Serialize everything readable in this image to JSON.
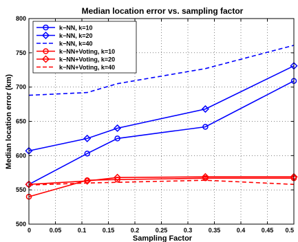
{
  "chart_data": {
    "type": "line",
    "title": "Median location error vs. sampling factor",
    "xlabel": "Sampling Factor",
    "ylabel": "Median location error (km)",
    "xlim": [
      0,
      0.5
    ],
    "ylim": [
      500,
      800
    ],
    "xticks": [
      "0",
      "0.05",
      "0.1",
      "0.15",
      "0.2",
      "0.25",
      "0.3",
      "0.35",
      "0.4",
      "0.45",
      "0.5"
    ],
    "yticks": [
      "500",
      "550",
      "600",
      "650",
      "700",
      "750",
      "800"
    ],
    "grid": "dotted",
    "legend_position": "top-left",
    "series": [
      {
        "name": "k−NN, k=10",
        "color": "#0000ff",
        "style": "solid",
        "marker": "circle",
        "x": [
          0,
          0.11,
          0.167,
          0.333,
          0.5
        ],
        "y": [
          558,
          603,
          625,
          642,
          709
        ]
      },
      {
        "name": "k−NN, k=20",
        "color": "#0000ff",
        "style": "solid",
        "marker": "diamond",
        "x": [
          0,
          0.11,
          0.167,
          0.333,
          0.5
        ],
        "y": [
          607,
          625,
          640,
          668,
          731
        ]
      },
      {
        "name": "k−NN, k=40",
        "color": "#0000ff",
        "style": "dashed",
        "marker": "none",
        "x": [
          0,
          0.11,
          0.167,
          0.333,
          0.5
        ],
        "y": [
          688,
          692,
          705,
          727,
          761
        ]
      },
      {
        "name": "k−NN+Voting, k=10",
        "color": "#ff0000",
        "style": "solid",
        "marker": "circle",
        "x": [
          0,
          0.11,
          0.167,
          0.333,
          0.5
        ],
        "y": [
          540,
          564,
          565,
          567,
          567
        ]
      },
      {
        "name": "k−NN+Voting, k=20",
        "color": "#ff0000",
        "style": "solid",
        "marker": "diamond",
        "x": [
          0,
          0.11,
          0.167,
          0.333,
          0.5
        ],
        "y": [
          558,
          563,
          568,
          569,
          569
        ]
      },
      {
        "name": "k−NN+Voting, k=40",
        "color": "#ff0000",
        "style": "dashed",
        "marker": "none",
        "x": [
          0,
          0.11,
          0.167,
          0.333,
          0.5
        ],
        "y": [
          557,
          560,
          561,
          564,
          558
        ]
      }
    ]
  }
}
